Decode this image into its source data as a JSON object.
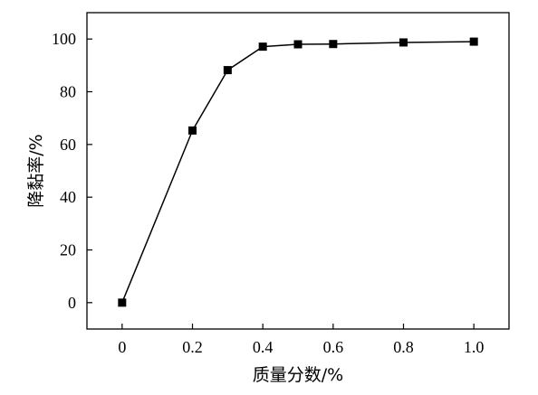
{
  "chart_data": {
    "type": "line",
    "title": "",
    "xlabel": "质量分数/%",
    "ylabel": "降黏率/%",
    "xlim": [
      -0.1,
      1.1
    ],
    "ylim": [
      -10,
      110
    ],
    "xticks": [
      0,
      0.2,
      0.4,
      0.6,
      0.8,
      1.0
    ],
    "xtick_labels": [
      "0",
      "0.2",
      "0.4",
      "0.6",
      "0.8",
      "1.0"
    ],
    "yticks": [
      0,
      20,
      40,
      60,
      80,
      100
    ],
    "ytick_labels": [
      "0",
      "20",
      "40",
      "60",
      "80",
      "100"
    ],
    "grid": false,
    "legend": "none",
    "marker": "square",
    "color": "#000000",
    "series": [
      {
        "x": [
          0,
          0.2,
          0.3,
          0.4,
          0.5,
          0.6,
          0.8,
          1.0
        ],
        "y": [
          0,
          65.3,
          88.2,
          97.1,
          98.0,
          98.1,
          98.7,
          99.0
        ]
      }
    ]
  }
}
